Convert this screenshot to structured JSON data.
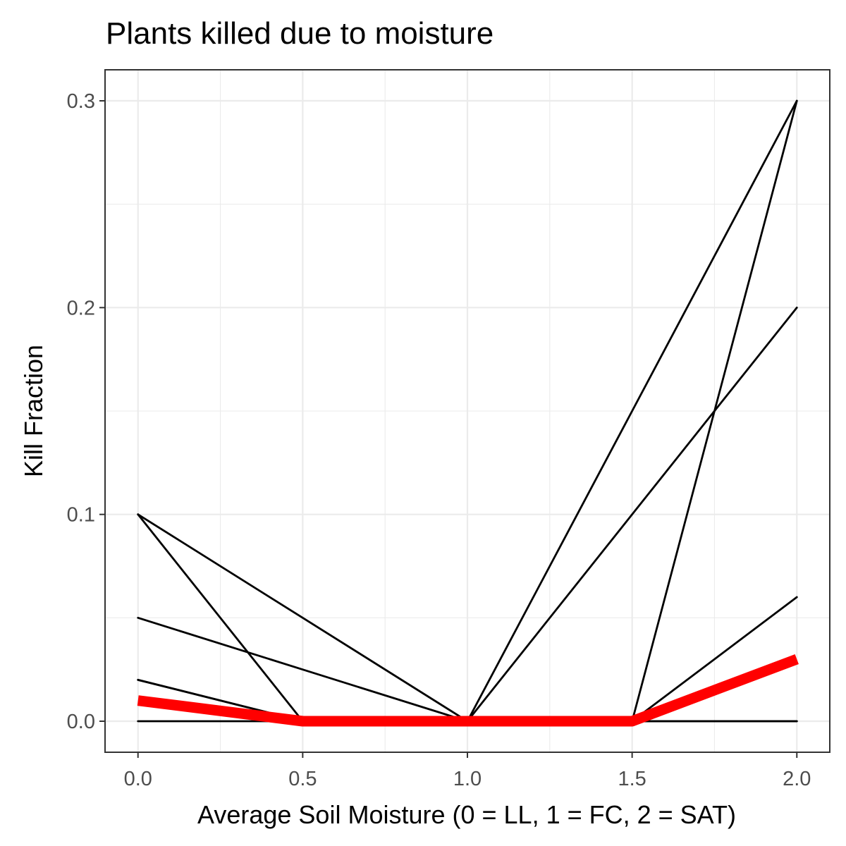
{
  "chart_data": {
    "type": "line",
    "title": "Plants killed due to moisture",
    "xlabel": "Average Soil Moisture (0 = LL, 1 = FC, 2 = SAT)",
    "ylabel": "Kill Fraction",
    "xlim": [
      -0.1,
      2.1
    ],
    "ylim": [
      -0.015,
      0.315
    ],
    "x_ticks": [
      0,
      0.5,
      1,
      1.5,
      2
    ],
    "x_tick_labels": [
      "0.0",
      "0.5",
      "1.0",
      "1.5",
      "2.0"
    ],
    "y_ticks": [
      0,
      0.1,
      0.2,
      0.3
    ],
    "y_tick_labels": [
      "0.0",
      "0.1",
      "0.2",
      "0.3"
    ],
    "grid": true,
    "legend": "none",
    "colors": {
      "lines": "#000000",
      "highlight": "#ff0000"
    },
    "x": [
      0,
      0.5,
      1,
      1.5,
      2
    ],
    "series": [
      {
        "values": [
          0.1,
          0,
          0,
          0,
          0
        ],
        "color": "#000000"
      },
      {
        "values": [
          0.1,
          0.05,
          0,
          0.15,
          0.3
        ],
        "color": "#000000"
      },
      {
        "values": [
          0.05,
          0.025,
          0,
          0.1,
          0.2
        ],
        "color": "#000000"
      },
      {
        "values": [
          0.02,
          0,
          0,
          0,
          0.3
        ],
        "color": "#000000"
      },
      {
        "values": [
          0.02,
          0,
          0,
          0,
          0.06
        ],
        "color": "#000000"
      },
      {
        "values": [
          0,
          0,
          0,
          0,
          0
        ],
        "color": "#000000"
      },
      {
        "values": [
          0.01,
          0,
          0,
          0,
          0.03
        ],
        "color": "#ff0000",
        "highlight": true
      }
    ]
  }
}
